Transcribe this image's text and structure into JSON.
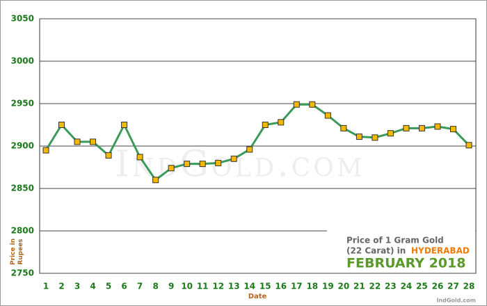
{
  "chart_data": {
    "type": "line",
    "categories": [
      "1",
      "2",
      "3",
      "4",
      "5",
      "6",
      "7",
      "8",
      "9",
      "10",
      "11",
      "12",
      "13",
      "14",
      "15",
      "16",
      "17",
      "18",
      "19",
      "20",
      "21",
      "22",
      "23",
      "24",
      "25",
      "26",
      "27",
      "28"
    ],
    "series": [
      {
        "name": "Price of 1 Gram Gold",
        "color": "#3a9a5a",
        "values": [
          2895,
          2925,
          2905,
          2905,
          2889,
          2925,
          2887,
          2860,
          2874,
          2879,
          2879,
          2880,
          2885,
          2896,
          2925,
          2928,
          2949,
          2949,
          2936,
          2921,
          2911,
          2910,
          2915,
          2921,
          2921,
          2923,
          2920,
          2901
        ]
      }
    ],
    "marker_color": "#f5b800",
    "ylim": [
      2750,
      3050
    ],
    "yticks": [
      2750,
      2800,
      2850,
      2900,
      2950,
      3000,
      3050
    ],
    "grid": true,
    "x_label": "Date",
    "y_label": "Price in Rupees",
    "legend_title": "Price of 1 Gram Gold",
    "legend_subtitle": "(22 Carat) in",
    "city": "HYDERABAD",
    "period": "FEBRUARY 2018",
    "watermark": "IndGold.com",
    "source": "IndGold.com"
  }
}
